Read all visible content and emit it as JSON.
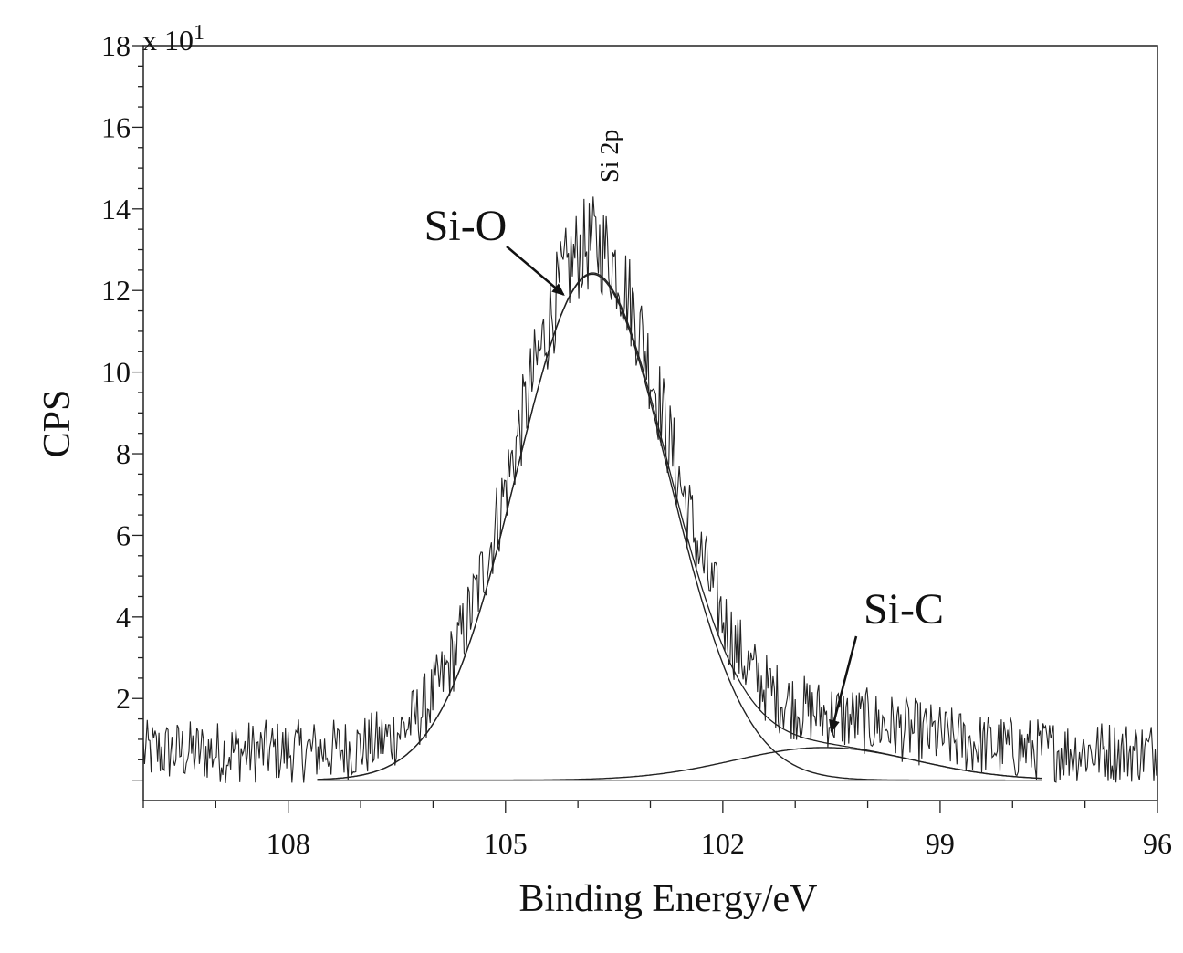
{
  "chart_data": {
    "type": "line",
    "title": "",
    "xlabel": "Binding Energy/eV",
    "ylabel": "CPS",
    "y_multiplier_label": "x 10",
    "y_multiplier_exp": "1",
    "xlim": [
      110,
      96
    ],
    "ylim": [
      -0.5,
      18
    ],
    "x_reversed": true,
    "x_ticks": [
      108,
      105,
      102,
      99,
      96
    ],
    "y_ticks": [
      2,
      4,
      6,
      8,
      10,
      12,
      14,
      16,
      18
    ],
    "grid": false,
    "baseline_value": 0.0,
    "components": [
      {
        "name": "Si-O",
        "center": 103.8,
        "amplitude": 12.4,
        "width_sigma": 1.05,
        "x_range": [
          107.6,
          98.1
        ]
      },
      {
        "name": "Si-C",
        "center": 100.6,
        "amplitude": 0.8,
        "width_sigma": 1.25,
        "x_range": [
          107.6,
          97.6
        ]
      }
    ],
    "baseline_segment": [
      107.6,
      97.6
    ],
    "noise_amplitude": 1.3,
    "peak_label": "Si 2p",
    "peak_label_x": 103.6,
    "annotations": [
      {
        "text": "Si-O",
        "target_x": 104.2,
        "target_y": 11.9
      },
      {
        "text": "Si-C",
        "target_x": 100.5,
        "target_y": 1.2
      }
    ]
  }
}
